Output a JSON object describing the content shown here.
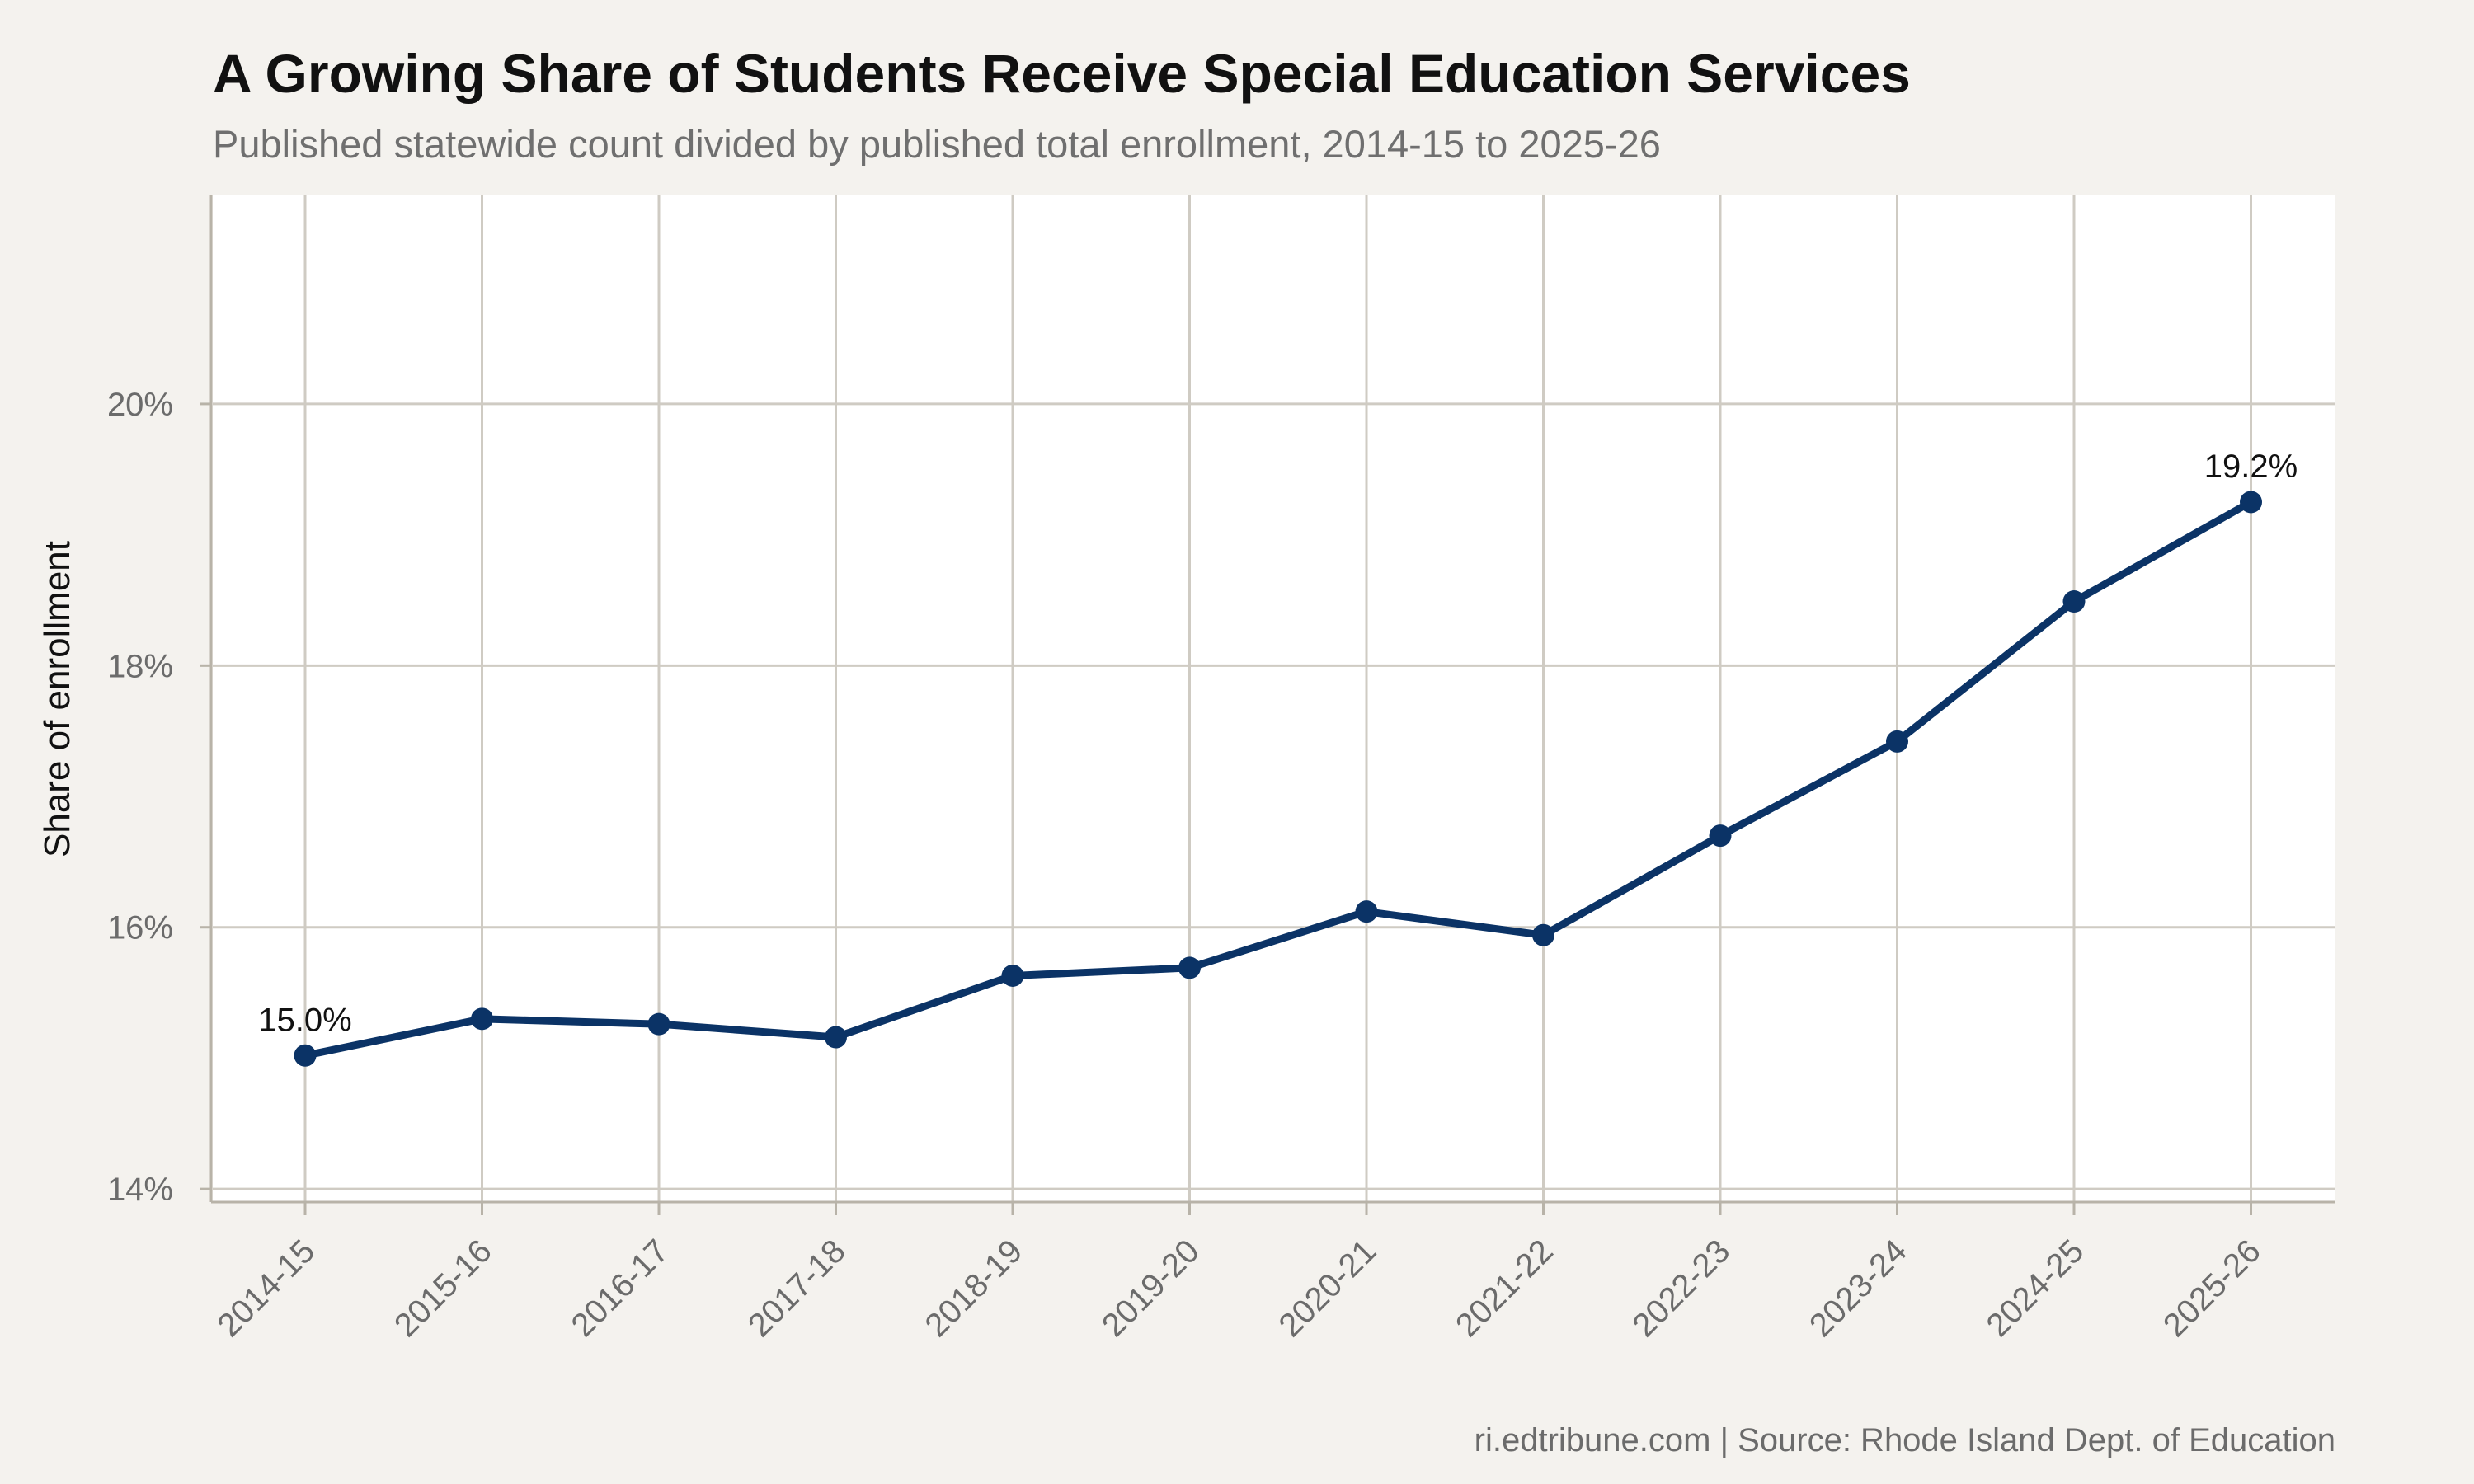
{
  "chart_data": {
    "type": "line",
    "title": "A Growing Share of Students Receive Special Education Services",
    "subtitle": "Published statewide count divided by published total enrollment, 2014-15 to 2025-26",
    "xlabel": "",
    "ylabel": "Share of enrollment",
    "categories": [
      "2014-15",
      "2015-16",
      "2016-17",
      "2017-18",
      "2018-19",
      "2019-20",
      "2020-21",
      "2021-22",
      "2022-23",
      "2023-24",
      "2024-25",
      "2025-26"
    ],
    "series": [
      {
        "values": [
          15.02,
          15.3,
          15.26,
          15.16,
          15.63,
          15.69,
          16.12,
          15.94,
          16.7,
          17.42,
          18.49,
          19.25
        ],
        "color": "#0b3366"
      }
    ],
    "ylim": [
      13.9,
      21.6
    ],
    "y_ticks": [
      14,
      16,
      18,
      20
    ],
    "y_tick_labels": [
      "14%",
      "16%",
      "18%",
      "20%"
    ],
    "annotations": [
      {
        "category": "2014-15",
        "text": "15.0%"
      },
      {
        "category": "2025-26",
        "text": "19.2%"
      }
    ],
    "grid": true,
    "legend": "none",
    "caption": "ri.edtribune.com | Source: Rhode Island Dept. of Education",
    "colors": {
      "background": "#f4f2ee",
      "panel": "#ffffff",
      "grid": "#cfcbc3",
      "line": "#0b3366"
    }
  }
}
